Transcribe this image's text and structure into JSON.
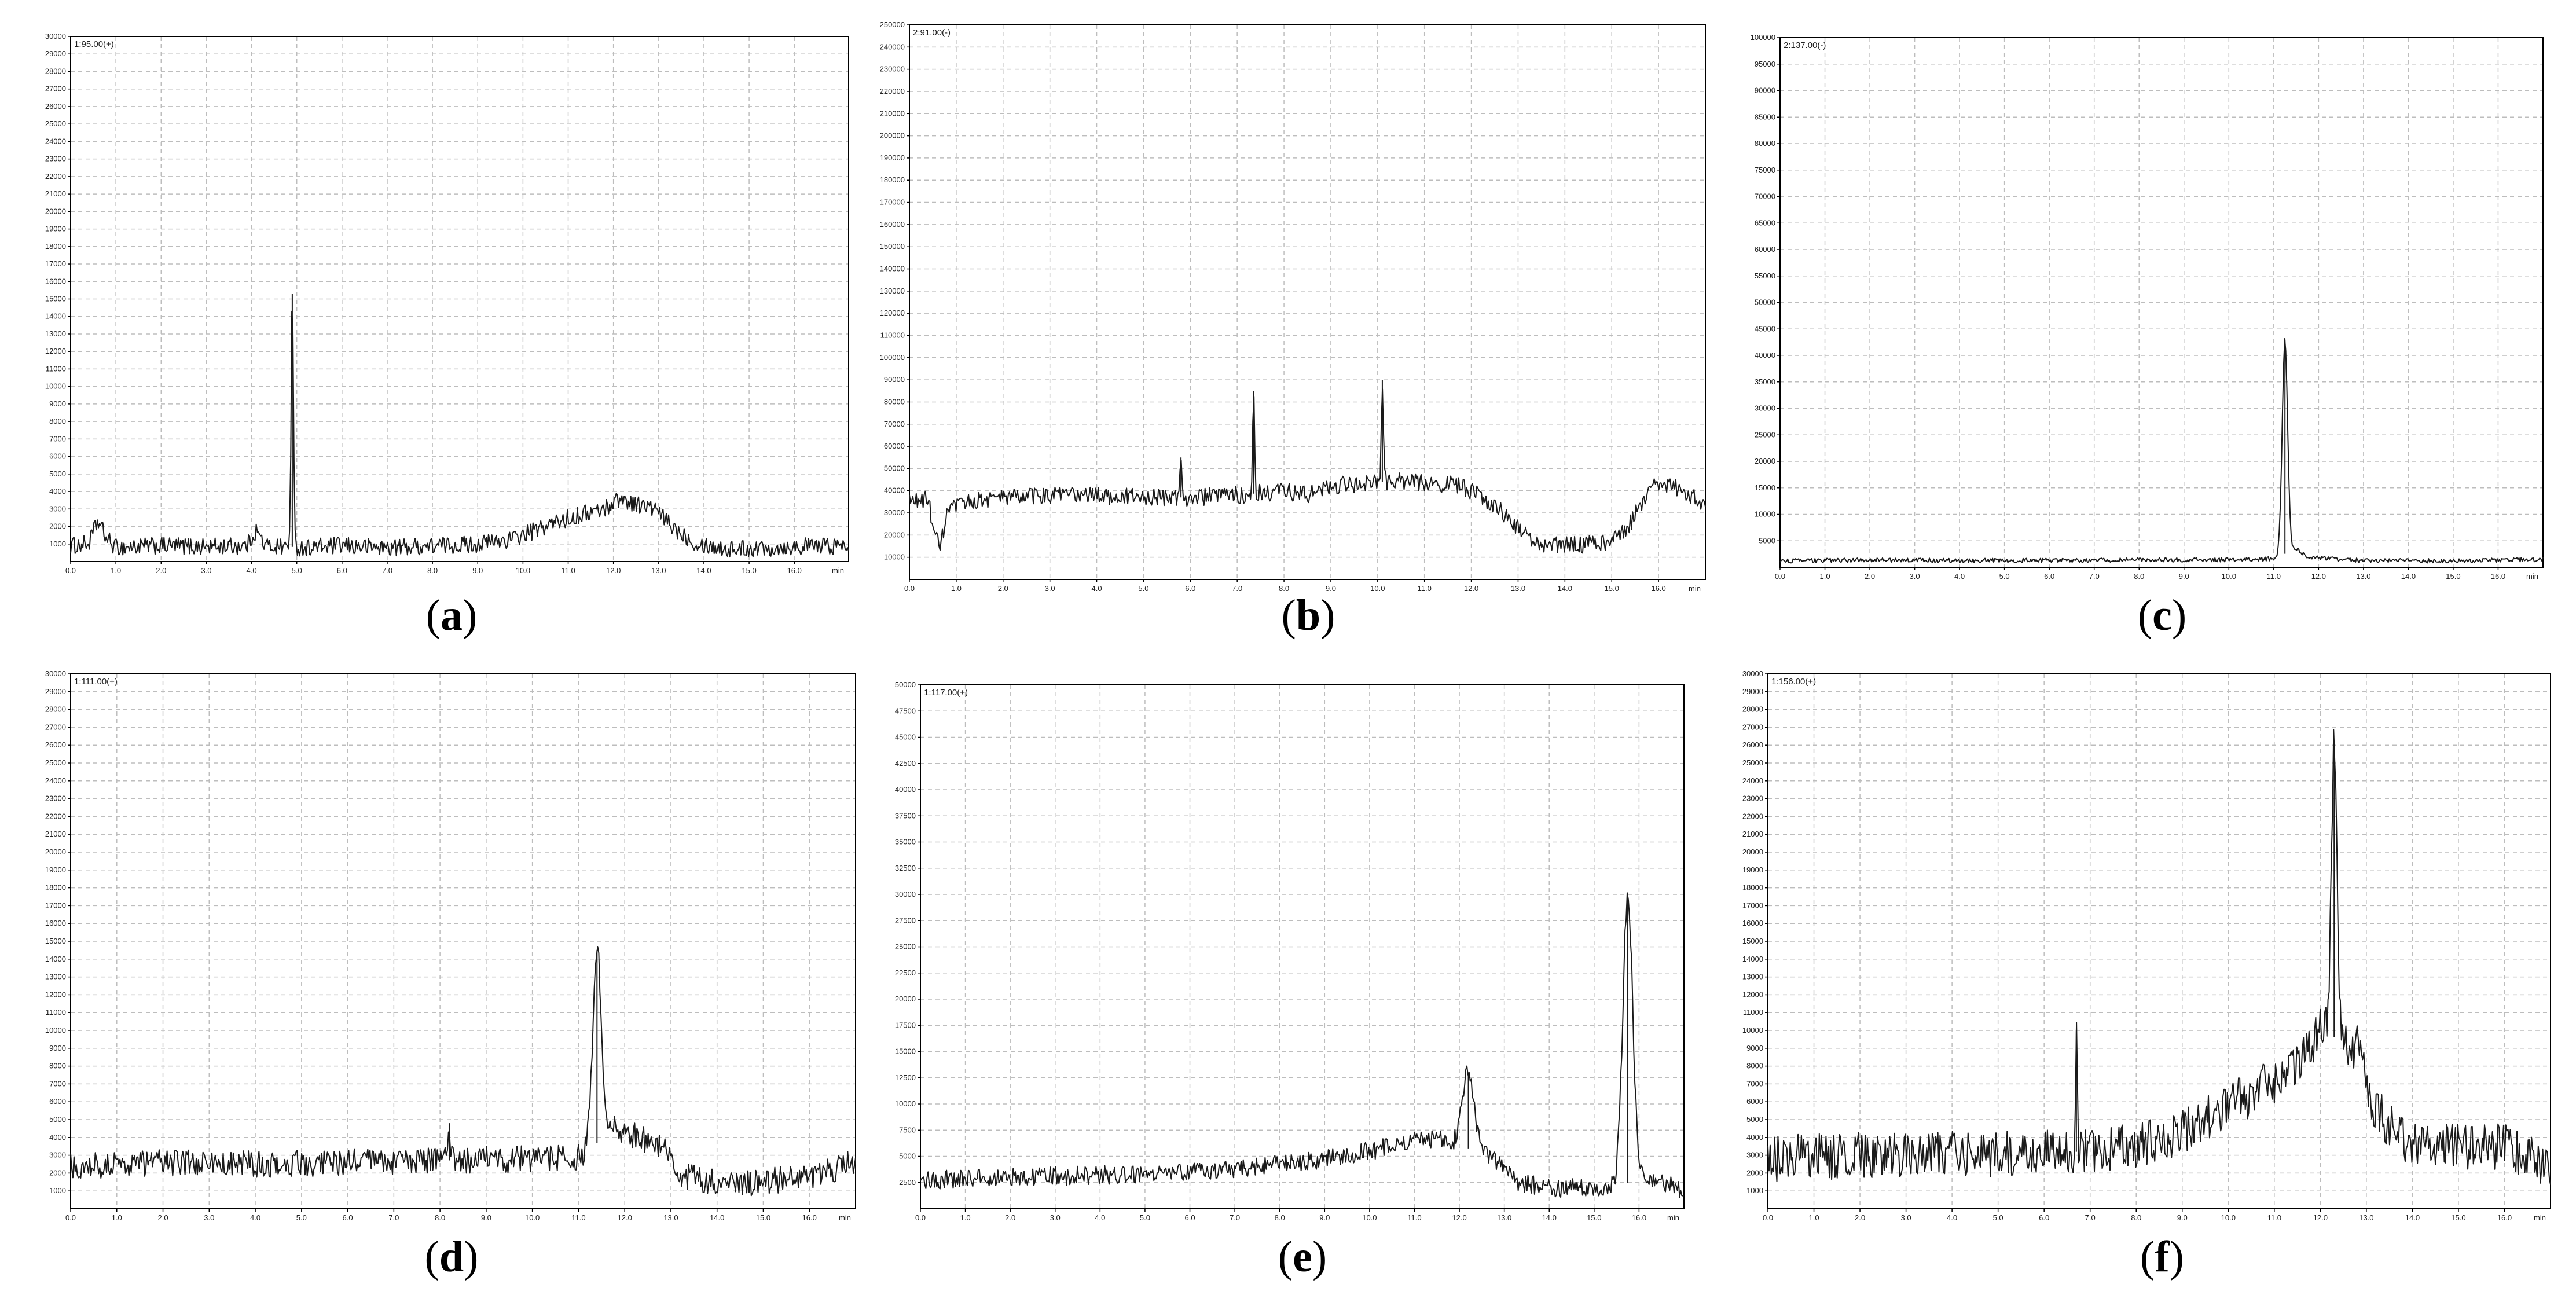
{
  "colors": {
    "trace": "#1a1a1a",
    "grid": "#bdbdbd",
    "axis": "#000000",
    "text": "#222222"
  },
  "chart_data": [
    {
      "panel": "(a)",
      "caption_letter": "a",
      "type": "line",
      "trace_label": "1:95.00(+)",
      "xlabel": "min",
      "xlim": [
        0,
        17.2
      ],
      "ylim": [
        0,
        30000
      ],
      "xticks": [
        0.0,
        1.0,
        2.0,
        3.0,
        4.0,
        5.0,
        6.0,
        7.0,
        8.0,
        9.0,
        10.0,
        11.0,
        12.0,
        13.0,
        14.0,
        15.0,
        16.0
      ],
      "yticks": [
        1000,
        2000,
        3000,
        4000,
        5000,
        6000,
        7000,
        8000,
        9000,
        10000,
        11000,
        12000,
        13000,
        14000,
        15000,
        16000,
        17000,
        18000,
        19000,
        20000,
        21000,
        22000,
        23000,
        24000,
        25000,
        26000,
        27000,
        28000,
        29000,
        30000
      ],
      "grid": true,
      "baseline": [
        [
          0,
          900
        ],
        [
          0.4,
          1000
        ],
        [
          0.6,
          2300
        ],
        [
          0.8,
          1300
        ],
        [
          1.0,
          800
        ],
        [
          2.0,
          900
        ],
        [
          3.0,
          850
        ],
        [
          3.9,
          900
        ],
        [
          4.1,
          1800
        ],
        [
          4.3,
          900
        ],
        [
          5.2,
          800
        ],
        [
          6.0,
          900
        ],
        [
          7.0,
          800
        ],
        [
          8.0,
          900
        ],
        [
          9.0,
          1000
        ],
        [
          9.8,
          1300
        ],
        [
          10.2,
          1700
        ],
        [
          10.8,
          2300
        ],
        [
          11.3,
          2700
        ],
        [
          11.8,
          3000
        ],
        [
          12.1,
          3600
        ],
        [
          12.5,
          3300
        ],
        [
          12.9,
          3000
        ],
        [
          13.3,
          2000
        ],
        [
          13.8,
          1100
        ],
        [
          14.5,
          700
        ],
        [
          15.5,
          800
        ],
        [
          16.5,
          900
        ],
        [
          17.2,
          900
        ]
      ],
      "noise": 500,
      "peaks": [
        {
          "x": 4.9,
          "y": 15300,
          "w": 0.025
        }
      ]
    },
    {
      "panel": "(b)",
      "caption_letter": "b",
      "type": "line",
      "trace_label": "2:91.00(-)",
      "xlabel": "min",
      "xlim": [
        0,
        17.0
      ],
      "ylim": [
        0,
        250000
      ],
      "xticks": [
        0.0,
        1.0,
        2.0,
        3.0,
        4.0,
        5.0,
        6.0,
        7.0,
        8.0,
        9.0,
        10.0,
        11.0,
        12.0,
        13.0,
        14.0,
        15.0,
        16.0
      ],
      "yticks": [
        10000,
        20000,
        30000,
        40000,
        50000,
        60000,
        70000,
        80000,
        90000,
        100000,
        110000,
        120000,
        130000,
        140000,
        150000,
        160000,
        170000,
        180000,
        190000,
        200000,
        210000,
        220000,
        230000,
        240000,
        250000
      ],
      "grid": true,
      "baseline": [
        [
          0,
          35000
        ],
        [
          0.4,
          36000
        ],
        [
          0.55,
          20000
        ],
        [
          0.65,
          13000
        ],
        [
          0.8,
          30000
        ],
        [
          1.2,
          35000
        ],
        [
          2.0,
          37000
        ],
        [
          3.0,
          38000
        ],
        [
          4.0,
          38000
        ],
        [
          5.0,
          37000
        ],
        [
          6.0,
          37000
        ],
        [
          7.0,
          38000
        ],
        [
          8.0,
          40000
        ],
        [
          8.5,
          38000
        ],
        [
          9.0,
          42000
        ],
        [
          10.0,
          44000
        ],
        [
          11.0,
          44000
        ],
        [
          11.8,
          42000
        ],
        [
          12.3,
          36000
        ],
        [
          12.8,
          28000
        ],
        [
          13.2,
          19000
        ],
        [
          13.6,
          15000
        ],
        [
          14.5,
          16000
        ],
        [
          15.0,
          17000
        ],
        [
          15.3,
          22000
        ],
        [
          15.6,
          33000
        ],
        [
          15.9,
          45000
        ],
        [
          16.3,
          42000
        ],
        [
          16.7,
          38000
        ],
        [
          17.0,
          34000
        ]
      ],
      "noise": 4000,
      "peaks": [
        {
          "x": 5.8,
          "y": 55000,
          "w": 0.02
        },
        {
          "x": 7.35,
          "y": 85000,
          "w": 0.02
        },
        {
          "x": 10.1,
          "y": 90000,
          "w": 0.02
        }
      ]
    },
    {
      "panel": "(c)",
      "caption_letter": "c",
      "type": "line",
      "trace_label": "2:137.00(-)",
      "xlabel": "min",
      "xlim": [
        0,
        17.0
      ],
      "ylim": [
        0,
        100000
      ],
      "xticks": [
        0.0,
        1.0,
        2.0,
        3.0,
        4.0,
        5.0,
        6.0,
        7.0,
        8.0,
        9.0,
        10.0,
        11.0,
        12.0,
        13.0,
        14.0,
        15.0,
        16.0
      ],
      "yticks": [
        5000,
        10000,
        15000,
        20000,
        25000,
        30000,
        35000,
        40000,
        45000,
        50000,
        55000,
        60000,
        65000,
        70000,
        75000,
        80000,
        85000,
        90000,
        95000,
        100000
      ],
      "grid": true,
      "baseline": [
        [
          0,
          1200
        ],
        [
          2.0,
          1400
        ],
        [
          4.0,
          1300
        ],
        [
          6.0,
          1300
        ],
        [
          8.0,
          1400
        ],
        [
          10.0,
          1400
        ],
        [
          11.0,
          1600
        ],
        [
          11.5,
          3500
        ],
        [
          11.8,
          1800
        ],
        [
          13.0,
          1300
        ],
        [
          15.0,
          1200
        ],
        [
          17.0,
          1500
        ]
      ],
      "noise": 400,
      "peaks": [
        {
          "x": 11.25,
          "y": 43000,
          "w": 0.06
        }
      ]
    },
    {
      "panel": "(d)",
      "caption_letter": "d",
      "type": "line",
      "trace_label": "1:111.00(+)",
      "xlabel": "min",
      "xlim": [
        0,
        17.0
      ],
      "ylim": [
        0,
        30000
      ],
      "xticks": [
        0.0,
        1.0,
        2.0,
        3.0,
        4.0,
        5.0,
        6.0,
        7.0,
        8.0,
        9.0,
        10.0,
        11.0,
        12.0,
        13.0,
        14.0,
        15.0,
        16.0
      ],
      "yticks": [
        1000,
        2000,
        3000,
        4000,
        5000,
        6000,
        7000,
        8000,
        9000,
        10000,
        11000,
        12000,
        13000,
        14000,
        15000,
        16000,
        17000,
        18000,
        19000,
        20000,
        21000,
        22000,
        23000,
        24000,
        25000,
        26000,
        27000,
        28000,
        29000,
        30000
      ],
      "grid": true,
      "baseline": [
        [
          0,
          2400
        ],
        [
          2.0,
          2600
        ],
        [
          4.0,
          2500
        ],
        [
          6.0,
          2600
        ],
        [
          8.0,
          2700
        ],
        [
          10.0,
          2800
        ],
        [
          11.0,
          2900
        ],
        [
          11.8,
          4500
        ],
        [
          12.5,
          3800
        ],
        [
          12.9,
          3200
        ],
        [
          13.2,
          1800
        ],
        [
          14.5,
          1400
        ],
        [
          16.0,
          1800
        ],
        [
          17.0,
          2600
        ]
      ],
      "noise": 750,
      "peaks": [
        {
          "x": 11.4,
          "y": 14500,
          "w": 0.09
        },
        {
          "x": 8.2,
          "y": 4800,
          "w": 0.02
        }
      ]
    },
    {
      "panel": "(e)",
      "caption_letter": "e",
      "type": "line",
      "trace_label": "1:117.00(+)",
      "xlabel": "min",
      "xlim": [
        0,
        17.0
      ],
      "ylim": [
        0,
        50000
      ],
      "xticks": [
        0.0,
        1.0,
        2.0,
        3.0,
        4.0,
        5.0,
        6.0,
        7.0,
        8.0,
        9.0,
        10.0,
        11.0,
        12.0,
        13.0,
        14.0,
        15.0,
        16.0
      ],
      "yticks": [
        2500,
        5000,
        7500,
        10000,
        12500,
        15000,
        17500,
        20000,
        22500,
        25000,
        27500,
        30000,
        32500,
        35000,
        37500,
        40000,
        42500,
        45000,
        47500,
        50000
      ],
      "grid": true,
      "baseline": [
        [
          0,
          2700
        ],
        [
          2.0,
          3000
        ],
        [
          4.0,
          3200
        ],
        [
          6.0,
          3500
        ],
        [
          8.0,
          4200
        ],
        [
          9.5,
          5000
        ],
        [
          10.5,
          6000
        ],
        [
          11.5,
          6800
        ],
        [
          12.7,
          5000
        ],
        [
          13.3,
          2600
        ],
        [
          14.0,
          2000
        ],
        [
          15.0,
          2000
        ],
        [
          15.5,
          2200
        ],
        [
          16.3,
          3000
        ],
        [
          17.0,
          1500
        ]
      ],
      "noise": 900,
      "peaks": [
        {
          "x": 12.2,
          "y": 13000,
          "w": 0.13
        },
        {
          "x": 15.75,
          "y": 29800,
          "w": 0.11
        }
      ]
    },
    {
      "panel": "(f)",
      "caption_letter": "f",
      "type": "line",
      "trace_label": "1:156.00(+)",
      "xlabel": "min",
      "xlim": [
        0,
        17.0
      ],
      "ylim": [
        0,
        30000
      ],
      "xticks": [
        0.0,
        1.0,
        2.0,
        3.0,
        4.0,
        5.0,
        6.0,
        7.0,
        8.0,
        9.0,
        10.0,
        11.0,
        12.0,
        13.0,
        14.0,
        15.0,
        16.0
      ],
      "yticks": [
        1000,
        2000,
        3000,
        4000,
        5000,
        6000,
        7000,
        8000,
        9000,
        10000,
        11000,
        12000,
        13000,
        14000,
        15000,
        16000,
        17000,
        18000,
        19000,
        20000,
        21000,
        22000,
        23000,
        24000,
        25000,
        26000,
        27000,
        28000,
        29000,
        30000
      ],
      "grid": true,
      "baseline": [
        [
          0,
          2800
        ],
        [
          2.0,
          3000
        ],
        [
          4.0,
          3100
        ],
        [
          6.0,
          3100
        ],
        [
          7.5,
          3300
        ],
        [
          8.5,
          3800
        ],
        [
          9.5,
          5000
        ],
        [
          10.2,
          6000
        ],
        [
          11.0,
          7200
        ],
        [
          11.6,
          8500
        ],
        [
          12.0,
          10000
        ],
        [
          12.8,
          9000
        ],
        [
          13.2,
          5500
        ],
        [
          13.7,
          4000
        ],
        [
          15.0,
          3500
        ],
        [
          16.0,
          3500
        ],
        [
          17.0,
          2200
        ]
      ],
      "noise": 1300,
      "peaks": [
        {
          "x": 12.3,
          "y": 26000,
          "w": 0.06
        },
        {
          "x": 6.7,
          "y": 10000,
          "w": 0.02
        }
      ]
    }
  ]
}
